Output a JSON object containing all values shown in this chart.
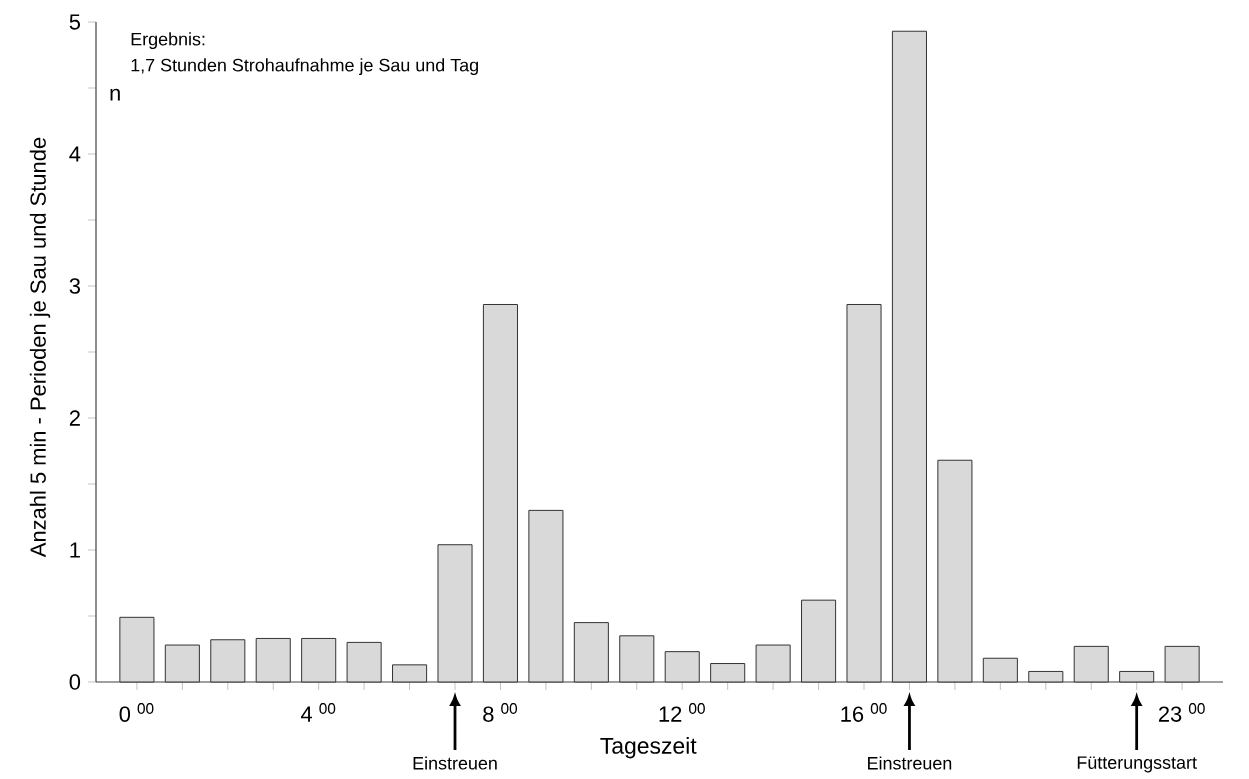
{
  "chart_data": {
    "type": "bar",
    "xlabel": "Tageszeit",
    "ylabel": "Anzahl 5 min - Perioden je Sau und Stunde",
    "categories": [
      "0 $^{00}$",
      null,
      null,
      null,
      "4 $^{00}$",
      null,
      null,
      null,
      "8 $^{00}$",
      null,
      null,
      null,
      "12 $^{00}$",
      null,
      null,
      null,
      "16 $^{00}$",
      null,
      null,
      null,
      null,
      null,
      null,
      "23 $^{00}$"
    ],
    "values": [
      0.49,
      0.28,
      0.32,
      0.33,
      0.33,
      0.3,
      0.13,
      1.04,
      2.86,
      1.3,
      0.45,
      0.35,
      0.23,
      0.14,
      0.28,
      0.62,
      2.86,
      4.93,
      1.68,
      0.18,
      0.08,
      0.27,
      0.08,
      0.27
    ],
    "color": "#d9d9d9",
    "ylim": [
      0,
      5
    ],
    "yticks": [
      0,
      {
        "value": 0.5,
        "label": null
      },
      1,
      {
        "value": 1.5,
        "label": null
      },
      2,
      {
        "value": 2.5,
        "label": null
      },
      3,
      {
        "value": 3.5,
        "label": null
      },
      4,
      {
        "value": 4.5,
        "label": null
      },
      5
    ],
    "annotations": [
      "Ergebnis:",
      "1,7 Stunden Strohaufnahme je Sau und Tag",
      "n",
      "Einstreuen",
      "Einstreuen",
      "Fütterungsstart"
    ]
  }
}
